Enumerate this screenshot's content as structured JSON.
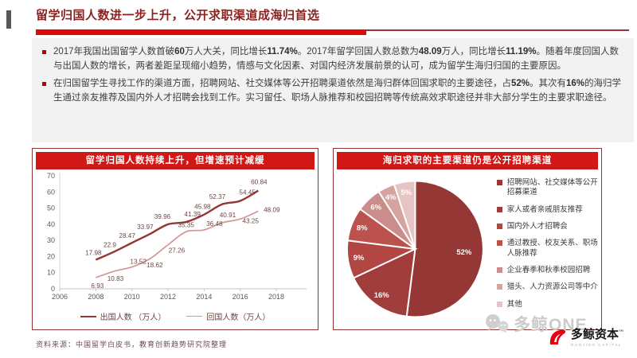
{
  "header": {
    "title": "留学归国人数进一步上升，公开求职渠道成海归首选"
  },
  "bullets": [
    {
      "segments": [
        {
          "text": "2017年我国出国留学人数首破",
          "bold": false
        },
        {
          "text": "60",
          "bold": true
        },
        {
          "text": "万人大关，同比增长",
          "bold": false
        },
        {
          "text": "11.74%",
          "bold": true
        },
        {
          "text": "。2017年留学回国人数总数为",
          "bold": false
        },
        {
          "text": "48.09",
          "bold": true
        },
        {
          "text": "万人，同比增长",
          "bold": false
        },
        {
          "text": "11.19%",
          "bold": true
        },
        {
          "text": "。随着年度回国人数与出国人数的增长，两者差距呈现缩小趋势，情感与文化因素、对国内经济发展前景的认可，成为留学生海归归国的主要原因。",
          "bold": false
        }
      ]
    },
    {
      "segments": [
        {
          "text": "在归国留学生寻找工作的渠道方面，招聘网站、社交媒体等公开招聘渠道依然是海归群体回国求职的主要途径，占",
          "bold": false
        },
        {
          "text": "52%",
          "bold": true
        },
        {
          "text": "。其次有",
          "bold": false
        },
        {
          "text": "16%",
          "bold": true
        },
        {
          "text": "的海归学生通过亲友推荐及国内外人才招聘会找到工作。实习留任、职场人脉推荐和校园招聘等传统高效求职途径并非大部分学生的主要求职途径。",
          "bold": false
        }
      ]
    }
  ],
  "chart_data": [
    {
      "type": "line",
      "title": "留学归国人数持续上升，但增速预计减缓",
      "x": [
        2008,
        2009,
        2010,
        2011,
        2012,
        2013,
        2014,
        2015,
        2016,
        2017
      ],
      "xticks": [
        2006,
        2008,
        2010,
        2012,
        2014,
        2016,
        2018
      ],
      "xlim": [
        2006,
        2018
      ],
      "ylim": [
        0,
        70
      ],
      "yticks": [
        0,
        10,
        20,
        30,
        40,
        50,
        60,
        70
      ],
      "grid": false,
      "legend_position": "bottom",
      "series": [
        {
          "name": "出国人数 （万人）",
          "color": "#943634",
          "width": 2.4,
          "values": [
            17.98,
            22.9,
            28.47,
            33.97,
            39.96,
            41.39,
            45.98,
            52.37,
            54.45,
            60.84
          ]
        },
        {
          "name": "回国人数（万人）",
          "color": "#d39795",
          "width": 1.7,
          "values": [
            6.93,
            10.83,
            13.52,
            18.62,
            27.26,
            35.35,
            36.48,
            40.91,
            43.25,
            48.09
          ]
        }
      ],
      "label_offsets": [
        [
          [
            -3,
            -6
          ],
          [
            -5,
            -6
          ],
          [
            -6,
            -6
          ],
          [
            -6,
            -6
          ],
          [
            -7,
            -7
          ],
          [
            8,
            -7
          ],
          [
            -2,
            -7
          ],
          [
            -6,
            -7
          ],
          [
            9,
            -8
          ],
          [
            1,
            -8
          ]
        ],
        [
          [
            2,
            13
          ],
          [
            2,
            12
          ],
          [
            8,
            -4
          ],
          [
            6,
            11
          ],
          [
            11,
            10
          ],
          [
            0,
            -6
          ],
          [
            13,
            -5
          ],
          [
            7,
            -7
          ],
          [
            13,
            5
          ],
          [
            17,
            1
          ]
        ]
      ],
      "label_color": "#6b4745"
    },
    {
      "type": "pie",
      "title": "海归求职的主要渠道仍是公开招聘渠道",
      "labels": [
        "招聘网站、社交媒体等公开招募渠道",
        "家人或者亲戚朋友推荐",
        "国内外人才招聘会",
        "通过教授、校友关系、职场人脉推荐",
        "企业春季和秋季校园招聘",
        "猎头、人力资源公司等中介",
        "其他"
      ],
      "values": [
        52,
        16,
        9,
        8,
        6,
        4,
        5
      ],
      "colors": [
        "#953735",
        "#a03d3a",
        "#b24643",
        "#bb524e",
        "#ca8d8b",
        "#d6a3a1",
        "#e5c4c3"
      ],
      "percent_labels": [
        "52%",
        "16%",
        "9%",
        "8%",
        "6%",
        "4%",
        "5%"
      ],
      "legend_position": "right",
      "start_angle": "top-clockwise"
    }
  ],
  "footer": {
    "source_note": "资料来源：中国留学白皮书，教育创新趋势研究院整理",
    "watermark_text": "多鲸ONE",
    "logo_text": "多鲸资本",
    "logo_tm": "™",
    "logo_subtext": "DUOJING CAPITAL"
  }
}
